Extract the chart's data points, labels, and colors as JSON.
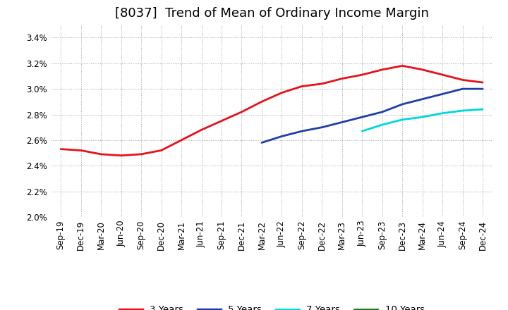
{
  "title": "[8037]  Trend of Mean of Ordinary Income Margin",
  "x_labels": [
    "Sep-19",
    "Dec-19",
    "Mar-20",
    "Jun-20",
    "Sep-20",
    "Dec-20",
    "Mar-21",
    "Jun-21",
    "Sep-21",
    "Dec-21",
    "Mar-22",
    "Jun-22",
    "Sep-22",
    "Dec-22",
    "Mar-23",
    "Jun-23",
    "Sep-23",
    "Dec-23",
    "Mar-24",
    "Jun-24",
    "Sep-24",
    "Dec-24"
  ],
  "ylim": [
    0.02,
    0.035
  ],
  "yticks": [
    0.02,
    0.022,
    0.024,
    0.026,
    0.028,
    0.03,
    0.032,
    0.034
  ],
  "series_3y": [
    0.0253,
    0.0252,
    0.0249,
    0.0248,
    0.0249,
    0.0252,
    0.026,
    0.0268,
    0.0275,
    0.0282,
    0.029,
    0.0297,
    0.0302,
    0.0304,
    0.0308,
    0.0311,
    0.0315,
    0.0318,
    0.0315,
    0.0311,
    0.0307,
    0.0305
  ],
  "series_5y": [
    null,
    null,
    null,
    null,
    null,
    null,
    null,
    null,
    null,
    null,
    0.0258,
    0.0263,
    0.0267,
    0.027,
    0.0274,
    0.0278,
    0.0282,
    0.0288,
    0.0292,
    0.0296,
    0.03,
    0.03
  ],
  "series_7y": [
    null,
    null,
    null,
    null,
    null,
    null,
    null,
    null,
    null,
    null,
    null,
    null,
    null,
    null,
    null,
    0.0267,
    0.0272,
    0.0276,
    0.0278,
    0.0281,
    0.0283,
    0.0284
  ],
  "series_10y": [
    null,
    null,
    null,
    null,
    null,
    null,
    null,
    null,
    null,
    null,
    null,
    null,
    null,
    null,
    null,
    null,
    null,
    null,
    null,
    null,
    null,
    null
  ],
  "color_3y": "#e8111a",
  "color_5y": "#1f3eaa",
  "color_7y": "#00d8d8",
  "color_10y": "#1a7a1a",
  "linewidth": 2.0,
  "background_color": "#ffffff",
  "grid_color": "#999999",
  "title_fontsize": 13,
  "tick_fontsize": 8.5,
  "legend_fontsize": 9.5
}
